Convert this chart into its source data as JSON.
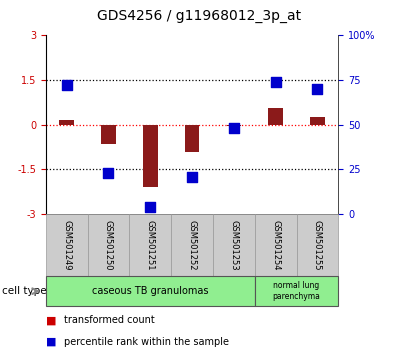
{
  "title": "GDS4256 / g11968012_3p_at",
  "samples": [
    "GSM501249",
    "GSM501250",
    "GSM501251",
    "GSM501252",
    "GSM501253",
    "GSM501254",
    "GSM501255"
  ],
  "transformed_count": [
    0.15,
    -0.65,
    -2.1,
    -0.9,
    -0.05,
    0.55,
    0.25
  ],
  "percentile_rank_left_axis": [
    1.35,
    -1.63,
    -2.75,
    -1.75,
    -0.1,
    1.42,
    1.2
  ],
  "ylim_left": [
    -3,
    3
  ],
  "ylim_right": [
    0,
    100
  ],
  "yticks_left": [
    -3,
    -1.5,
    0,
    1.5,
    3
  ],
  "yticks_left_labels": [
    "-3",
    "-1.5",
    "0",
    "1.5",
    "3"
  ],
  "yticks_right": [
    0,
    25,
    50,
    75,
    100
  ],
  "yticks_right_labels": [
    "0",
    "25",
    "50",
    "75",
    "100%"
  ],
  "hlines": [
    -1.5,
    0,
    1.5
  ],
  "bar_color": "#8B1A1A",
  "dot_color": "#0000CC",
  "bar_width": 0.35,
  "dot_size": 50,
  "cell_group1_label": "caseous TB granulomas",
  "cell_group2_label": "normal lung\nparenchyma",
  "cell_group1_count": 5,
  "cell_group2_count": 2,
  "cell_group_color": "#90EE90",
  "cell_type_label": "cell type",
  "legend1_label": "transformed count",
  "legend2_label": "percentile rank within the sample",
  "bar_color_legend": "#CC0000",
  "dot_color_legend": "#0000CC",
  "tick_area_color": "#CCCCCC",
  "background_color": "#FFFFFF",
  "left_ytick_color": "#CC0000",
  "right_ytick_color": "#0000CC",
  "title_fontsize": 10,
  "tick_fontsize": 7,
  "label_fontsize": 7,
  "sample_fontsize": 6
}
